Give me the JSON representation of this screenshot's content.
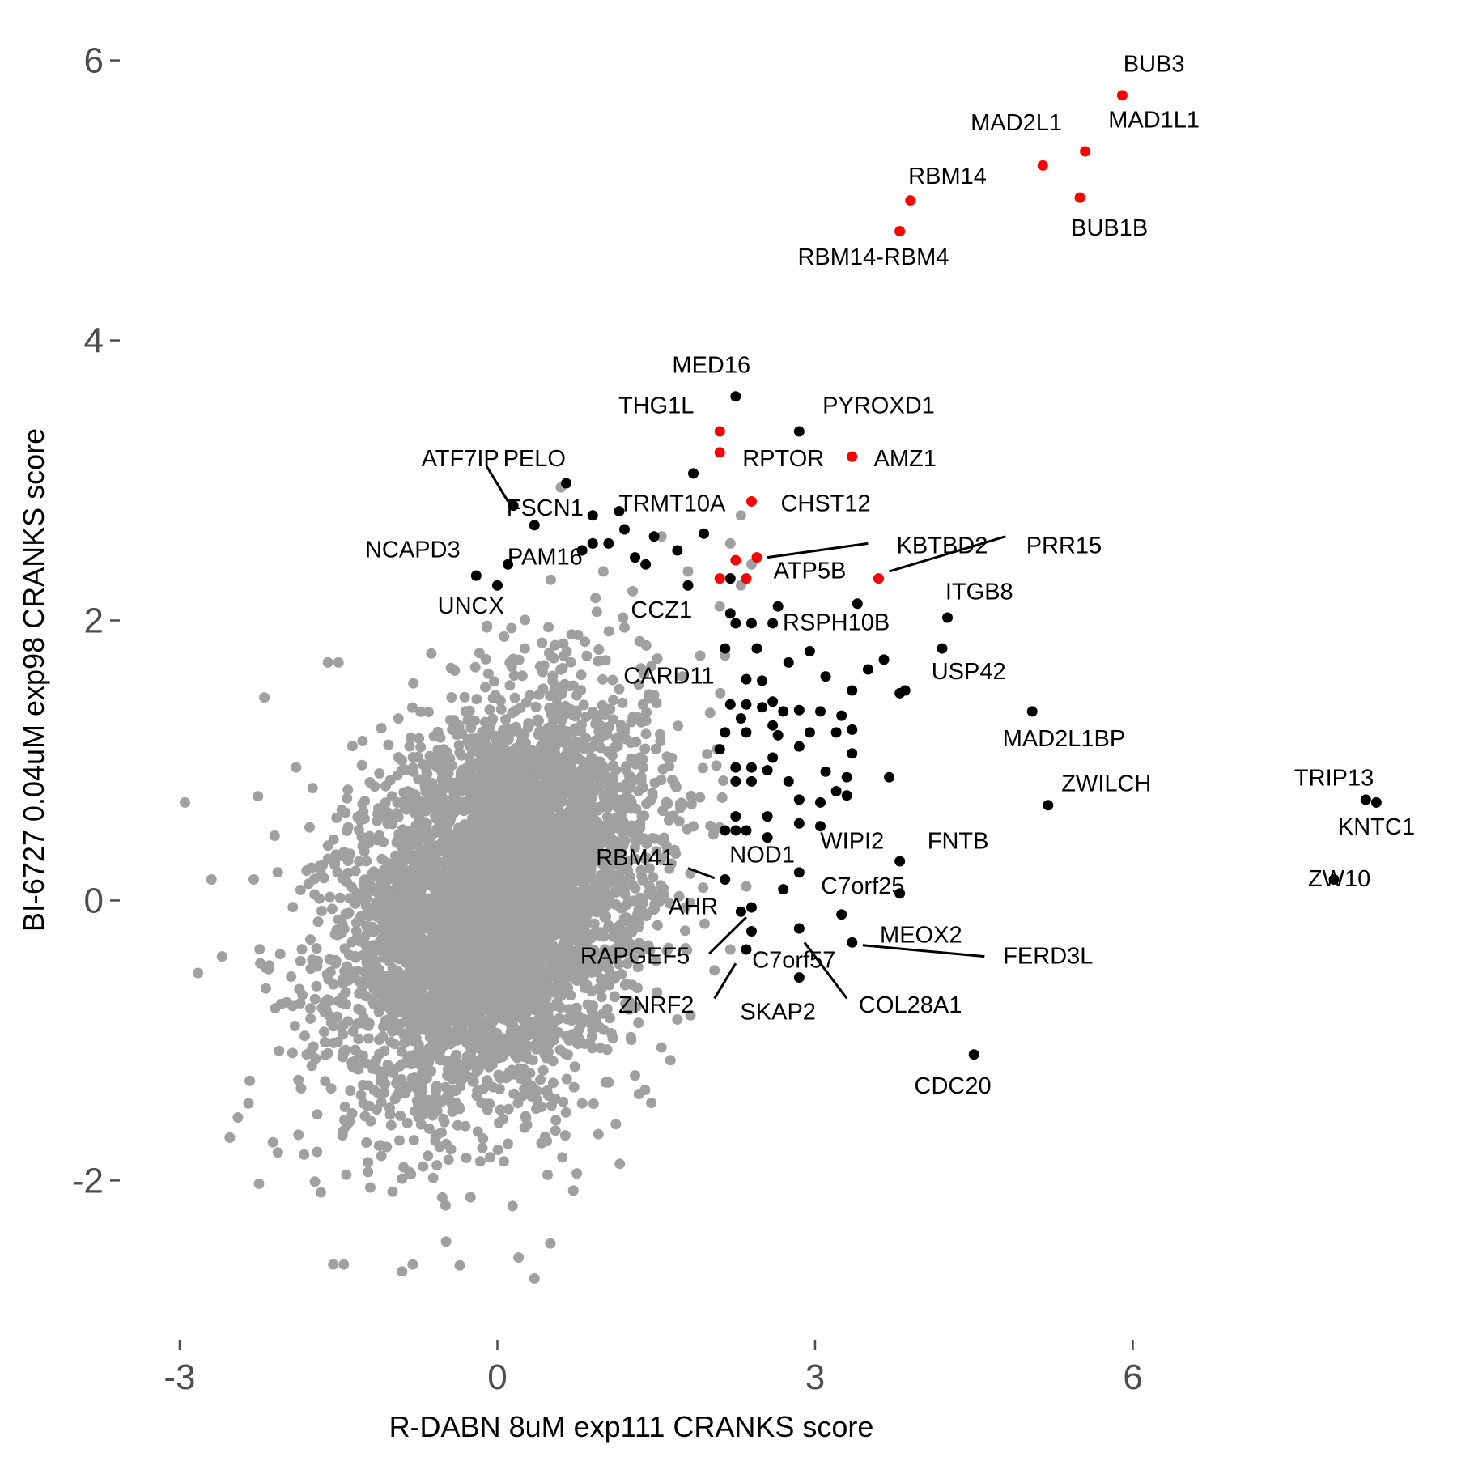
{
  "chart_data": {
    "type": "scatter",
    "title": "",
    "xlabel": "R-DABN 8uM exp111 CRANKS score",
    "ylabel": "BI-6727 0.04uM exp98 CRANKS score",
    "xlim": [
      -3.55,
      9.0
    ],
    "ylim": [
      -3.05,
      6.2
    ],
    "x_ticks": [
      -3,
      0,
      3,
      6
    ],
    "y_ticks": [
      -2,
      0,
      2,
      4,
      6
    ],
    "x_tick_labels": [
      "-3",
      "0",
      "3",
      "6"
    ],
    "y_tick_labels": [
      "-2",
      "0",
      "2",
      "4",
      "6"
    ],
    "grid": false,
    "legend": "none",
    "colors": {
      "background_genes": "#a0a0a0",
      "hits": "#000000",
      "highlighted": "#ff0000",
      "tick_text": "#4d4d4d"
    },
    "background_cloud": {
      "color": "#a0a0a0",
      "center": [
        0.0,
        0.0
      ],
      "sd_x": 0.7,
      "sd_y": 0.68,
      "correlation": 0.3,
      "approx_points": 5500
    },
    "background_points": [
      [
        -2.95,
        0.7
      ],
      [
        -2.7,
        0.15
      ],
      [
        -2.6,
        -0.4
      ],
      [
        -2.45,
        -1.55
      ],
      [
        -2.35,
        -1.45
      ],
      [
        -2.2,
        1.45
      ],
      [
        -2.3,
        0.15
      ],
      [
        -1.6,
        1.7
      ],
      [
        -1.5,
        1.7
      ],
      [
        -1.2,
        -2.05
      ],
      [
        -1.55,
        -2.6
      ],
      [
        -1.45,
        -2.6
      ],
      [
        -0.9,
        -2.65
      ],
      [
        -0.8,
        -2.6
      ],
      [
        0.2,
        -2.55
      ],
      [
        0.35,
        -2.7
      ],
      [
        0.5,
        -2.45
      ],
      [
        1.05,
        -1.3
      ],
      [
        1.3,
        -1.25
      ],
      [
        1.55,
        -1.05
      ],
      [
        1.7,
        -0.85
      ],
      [
        1.75,
        1.6
      ],
      [
        2.15,
        1.75
      ],
      [
        2.1,
        2.1
      ],
      [
        1.8,
        2.35
      ],
      [
        2.3,
        2.25
      ],
      [
        2.4,
        2.4
      ],
      [
        2.2,
        2.55
      ],
      [
        2.3,
        2.75
      ],
      [
        0.6,
        2.95
      ],
      [
        1.55,
        2.6
      ],
      [
        1.0,
        2.35
      ],
      [
        2.35,
        0.1
      ],
      [
        2.2,
        -0.35
      ],
      [
        2.05,
        -0.5
      ],
      [
        0.75,
        -1.95
      ],
      [
        -0.7,
        -1.9
      ],
      [
        -1.8,
        -1.1
      ],
      [
        -1.9,
        0.95
      ],
      [
        -0.1,
        1.95
      ],
      [
        0.7,
        1.9
      ],
      [
        1.2,
        1.95
      ]
    ],
    "black_points": [
      [
        2.25,
        3.6
      ],
      [
        2.85,
        3.35
      ],
      [
        1.85,
        3.05
      ],
      [
        0.65,
        2.98
      ],
      [
        0.15,
        2.82
      ],
      [
        1.15,
        2.78
      ],
      [
        0.9,
        2.75
      ],
      [
        0.35,
        2.68
      ],
      [
        1.2,
        2.65
      ],
      [
        1.48,
        2.6
      ],
      [
        1.95,
        2.62
      ],
      [
        0.9,
        2.55
      ],
      [
        1.05,
        2.55
      ],
      [
        1.7,
        2.5
      ],
      [
        0.8,
        2.5
      ],
      [
        1.3,
        2.45
      ],
      [
        1.4,
        2.4
      ],
      [
        1.8,
        2.25
      ],
      [
        0.1,
        2.4
      ],
      [
        -0.2,
        2.32
      ],
      [
        0.0,
        2.25
      ],
      [
        2.2,
        2.3
      ],
      [
        2.2,
        2.05
      ],
      [
        2.65,
        2.1
      ],
      [
        3.4,
        2.12
      ],
      [
        4.25,
        2.02
      ],
      [
        2.25,
        1.98
      ],
      [
        2.4,
        1.98
      ],
      [
        2.6,
        1.98
      ],
      [
        2.15,
        1.8
      ],
      [
        2.45,
        1.8
      ],
      [
        2.95,
        1.78
      ],
      [
        4.2,
        1.8
      ],
      [
        2.75,
        1.7
      ],
      [
        3.65,
        1.72
      ],
      [
        3.5,
        1.65
      ],
      [
        3.1,
        1.6
      ],
      [
        2.35,
        1.58
      ],
      [
        2.5,
        1.57
      ],
      [
        3.85,
        1.5
      ],
      [
        3.8,
        1.48
      ],
      [
        3.35,
        1.5
      ],
      [
        5.05,
        1.35
      ],
      [
        2.2,
        1.4
      ],
      [
        2.35,
        1.4
      ],
      [
        2.5,
        1.38
      ],
      [
        2.6,
        1.42
      ],
      [
        2.7,
        1.35
      ],
      [
        2.85,
        1.36
      ],
      [
        3.05,
        1.35
      ],
      [
        3.25,
        1.32
      ],
      [
        2.3,
        1.3
      ],
      [
        2.6,
        1.25
      ],
      [
        2.95,
        1.2
      ],
      [
        2.15,
        1.2
      ],
      [
        2.35,
        1.2
      ],
      [
        2.65,
        1.18
      ],
      [
        3.2,
        1.2
      ],
      [
        3.35,
        1.22
      ],
      [
        2.1,
        1.08
      ],
      [
        2.85,
        1.1
      ],
      [
        3.35,
        1.05
      ],
      [
        2.6,
        1.02
      ],
      [
        2.25,
        0.95
      ],
      [
        2.4,
        0.95
      ],
      [
        2.55,
        0.93
      ],
      [
        3.1,
        0.92
      ],
      [
        3.3,
        0.88
      ],
      [
        3.7,
        0.88
      ],
      [
        2.75,
        0.85
      ],
      [
        2.25,
        0.85
      ],
      [
        2.4,
        0.85
      ],
      [
        3.2,
        0.78
      ],
      [
        3.3,
        0.75
      ],
      [
        2.85,
        0.72
      ],
      [
        3.05,
        0.7
      ],
      [
        2.25,
        0.6
      ],
      [
        2.55,
        0.6
      ],
      [
        2.85,
        0.55
      ],
      [
        3.05,
        0.53
      ],
      [
        2.25,
        0.5
      ],
      [
        2.35,
        0.5
      ],
      [
        2.15,
        0.5
      ],
      [
        2.55,
        0.45
      ],
      [
        5.2,
        0.68
      ],
      [
        8.2,
        0.72
      ],
      [
        8.3,
        0.7
      ],
      [
        3.8,
        0.28
      ],
      [
        3.8,
        0.05
      ],
      [
        2.85,
        0.2
      ],
      [
        2.7,
        0.08
      ],
      [
        7.9,
        0.15
      ],
      [
        2.4,
        -0.05
      ],
      [
        2.3,
        -0.08
      ],
      [
        3.25,
        -0.1
      ],
      [
        2.4,
        -0.22
      ],
      [
        2.85,
        -0.2
      ],
      [
        3.35,
        -0.3
      ],
      [
        2.35,
        -0.35
      ],
      [
        2.85,
        -0.55
      ],
      [
        4.5,
        -1.1
      ],
      [
        2.15,
        0.15
      ]
    ],
    "red_points": [
      [
        5.9,
        5.75
      ],
      [
        5.55,
        5.35
      ],
      [
        5.15,
        5.25
      ],
      [
        5.5,
        5.02
      ],
      [
        3.9,
        5.0
      ],
      [
        3.8,
        4.78
      ],
      [
        2.1,
        3.35
      ],
      [
        2.1,
        3.2
      ],
      [
        3.35,
        3.17
      ],
      [
        2.4,
        2.85
      ],
      [
        2.45,
        2.45
      ],
      [
        2.25,
        2.43
      ],
      [
        3.6,
        2.3
      ],
      [
        2.1,
        2.3
      ],
      [
        2.35,
        2.3
      ]
    ],
    "annotations": [
      {
        "text": "BUB3",
        "x": 6.2,
        "y": 5.92,
        "anchor": "middle"
      },
      {
        "text": "MAD2L1",
        "x": 4.9,
        "y": 5.5,
        "anchor": "middle"
      },
      {
        "text": "MAD1L1",
        "x": 6.2,
        "y": 5.52,
        "anchor": "middle"
      },
      {
        "text": "RBM14",
        "x": 4.25,
        "y": 5.12,
        "anchor": "middle"
      },
      {
        "text": "BUB1B",
        "x": 5.78,
        "y": 4.75,
        "anchor": "middle"
      },
      {
        "text": "RBM14-RBM4",
        "x": 3.55,
        "y": 4.54,
        "anchor": "middle"
      },
      {
        "text": "MED16",
        "x": 2.02,
        "y": 3.77,
        "anchor": "middle"
      },
      {
        "text": "THG1L",
        "x": 1.5,
        "y": 3.48,
        "anchor": "middle"
      },
      {
        "text": "PYROXD1",
        "x": 3.6,
        "y": 3.48,
        "anchor": "middle"
      },
      {
        "text": "ATF7IP",
        "x": -0.35,
        "y": 3.1,
        "anchor": "middle"
      },
      {
        "text": "PELO",
        "x": 0.35,
        "y": 3.1,
        "anchor": "middle"
      },
      {
        "text": "RPTOR",
        "x": 2.7,
        "y": 3.1,
        "anchor": "middle"
      },
      {
        "text": "AMZ1",
        "x": 3.85,
        "y": 3.1,
        "anchor": "middle"
      },
      {
        "text": "FSCN1",
        "x": 0.45,
        "y": 2.75,
        "anchor": "middle"
      },
      {
        "text": "TRMT10A",
        "x": 1.65,
        "y": 2.78,
        "anchor": "middle"
      },
      {
        "text": "CHST12",
        "x": 3.1,
        "y": 2.78,
        "anchor": "middle"
      },
      {
        "text": "NCAPD3",
        "x": -0.8,
        "y": 2.45,
        "anchor": "middle"
      },
      {
        "text": "PAM16",
        "x": 0.45,
        "y": 2.4,
        "anchor": "middle"
      },
      {
        "text": "KBTBD2",
        "x": 4.2,
        "y": 2.48,
        "anchor": "middle"
      },
      {
        "text": "PRR15",
        "x": 5.35,
        "y": 2.48,
        "anchor": "middle"
      },
      {
        "text": "ATP5B",
        "x": 2.95,
        "y": 2.3,
        "anchor": "middle"
      },
      {
        "text": "ITGB8",
        "x": 4.55,
        "y": 2.15,
        "anchor": "middle"
      },
      {
        "text": "UNCX",
        "x": -0.25,
        "y": 2.05,
        "anchor": "middle"
      },
      {
        "text": "CCZ1",
        "x": 1.55,
        "y": 2.02,
        "anchor": "middle"
      },
      {
        "text": "RSPH10B",
        "x": 3.2,
        "y": 1.93,
        "anchor": "middle"
      },
      {
        "text": "CARD11",
        "x": 1.62,
        "y": 1.55,
        "anchor": "middle"
      },
      {
        "text": "USP42",
        "x": 4.45,
        "y": 1.58,
        "anchor": "middle"
      },
      {
        "text": "MAD2L1BP",
        "x": 5.35,
        "y": 1.1,
        "anchor": "middle"
      },
      {
        "text": "ZWILCH",
        "x": 5.75,
        "y": 0.78,
        "anchor": "middle"
      },
      {
        "text": "TRIP13",
        "x": 7.9,
        "y": 0.82,
        "anchor": "middle"
      },
      {
        "text": "KNTC1",
        "x": 8.3,
        "y": 0.47,
        "anchor": "middle"
      },
      {
        "text": "WIPI2",
        "x": 3.35,
        "y": 0.37,
        "anchor": "middle"
      },
      {
        "text": "FNTB",
        "x": 4.35,
        "y": 0.37,
        "anchor": "middle"
      },
      {
        "text": "RBM41",
        "x": 1.3,
        "y": 0.25,
        "anchor": "middle"
      },
      {
        "text": "NOD1",
        "x": 2.5,
        "y": 0.27,
        "anchor": "middle"
      },
      {
        "text": "ZW10",
        "x": 7.95,
        "y": 0.1,
        "anchor": "middle"
      },
      {
        "text": "C7orf25",
        "x": 3.45,
        "y": 0.05,
        "anchor": "middle"
      },
      {
        "text": "AHR",
        "x": 1.85,
        "y": -0.1,
        "anchor": "middle"
      },
      {
        "text": "MEOX2",
        "x": 4.0,
        "y": -0.3,
        "anchor": "middle"
      },
      {
        "text": "RAPGEF5",
        "x": 1.3,
        "y": -0.45,
        "anchor": "middle"
      },
      {
        "text": "C7orf57",
        "x": 2.8,
        "y": -0.48,
        "anchor": "middle"
      },
      {
        "text": "FERD3L",
        "x": 5.2,
        "y": -0.45,
        "anchor": "middle"
      },
      {
        "text": "ZNRF2",
        "x": 1.5,
        "y": -0.8,
        "anchor": "middle"
      },
      {
        "text": "SKAP2",
        "x": 2.65,
        "y": -0.85,
        "anchor": "middle"
      },
      {
        "text": "COL28A1",
        "x": 3.9,
        "y": -0.8,
        "anchor": "middle"
      },
      {
        "text": "CDC20",
        "x": 4.3,
        "y": -1.38,
        "anchor": "middle"
      }
    ],
    "leader_lines": [
      [
        -0.1,
        3.1,
        0.1,
        2.85
      ],
      [
        2.55,
        2.45,
        3.5,
        2.55
      ],
      [
        3.7,
        2.35,
        4.8,
        2.6
      ],
      [
        1.8,
        0.23,
        2.05,
        0.16
      ],
      [
        2.0,
        -0.38,
        2.35,
        -0.12
      ],
      [
        2.05,
        -0.7,
        2.25,
        -0.45
      ],
      [
        2.9,
        -0.3,
        3.3,
        -0.7
      ],
      [
        3.45,
        -0.32,
        4.6,
        -0.4
      ]
    ]
  }
}
